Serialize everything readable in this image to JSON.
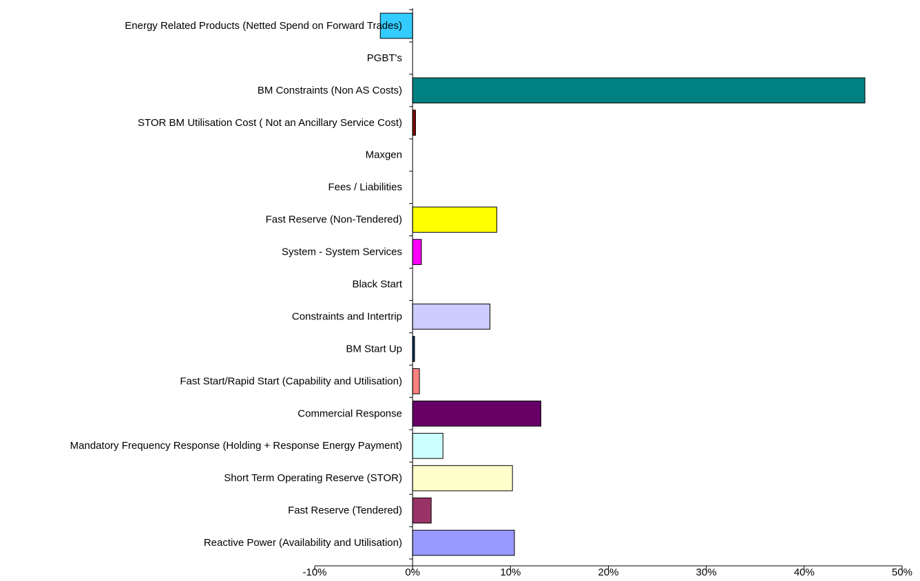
{
  "chart_data": {
    "type": "bar",
    "orientation": "horizontal",
    "title": "",
    "xlabel": "",
    "ylabel": "",
    "xlim": [
      -10,
      50
    ],
    "x_ticks": [
      -10,
      0,
      10,
      20,
      30,
      40,
      50
    ],
    "x_tick_labels": [
      "-10%",
      "0%",
      "10%",
      "20%",
      "30%",
      "40%",
      "50%"
    ],
    "grid": false,
    "legend": "none",
    "categories": [
      "Energy Related Products (Netted Spend on Forward Trades)",
      "PGBT's",
      "BM Constraints (Non AS Costs)",
      "STOR BM Utilisation Cost ( Not an Ancillary Service Cost)",
      "Maxgen",
      "Fees / Liabilities",
      "Fast Reserve (Non-Tendered)",
      "System - System Services",
      "Black Start",
      "Constraints and Intertrip",
      "BM Start Up",
      "Fast Start/Rapid Start (Capability and Utilisation)",
      "Commercial Response ",
      "Mandatory Frequency Response (Holding + Response Energy Payment)",
      "Short Term Operating Reserve (STOR)",
      "Fast Reserve (Tendered)",
      "Reactive Power (Availability and Utilisation)"
    ],
    "values": [
      -3.3,
      0,
      46.2,
      0.3,
      0,
      0,
      8.6,
      0.9,
      0,
      7.9,
      0.2,
      0.7,
      13.1,
      3.1,
      10.2,
      1.9,
      10.4
    ],
    "colors": [
      "#33CCFF",
      "#FFFFFF",
      "#008080",
      "#800000",
      "#FFFFFF",
      "#FFFFFF",
      "#FFFF00",
      "#FF00FF",
      "#FFFFFF",
      "#CCCCFF",
      "#003366",
      "#FF8080",
      "#660066",
      "#CCFFFF",
      "#FFFFCC",
      "#993366",
      "#9999FF"
    ]
  }
}
